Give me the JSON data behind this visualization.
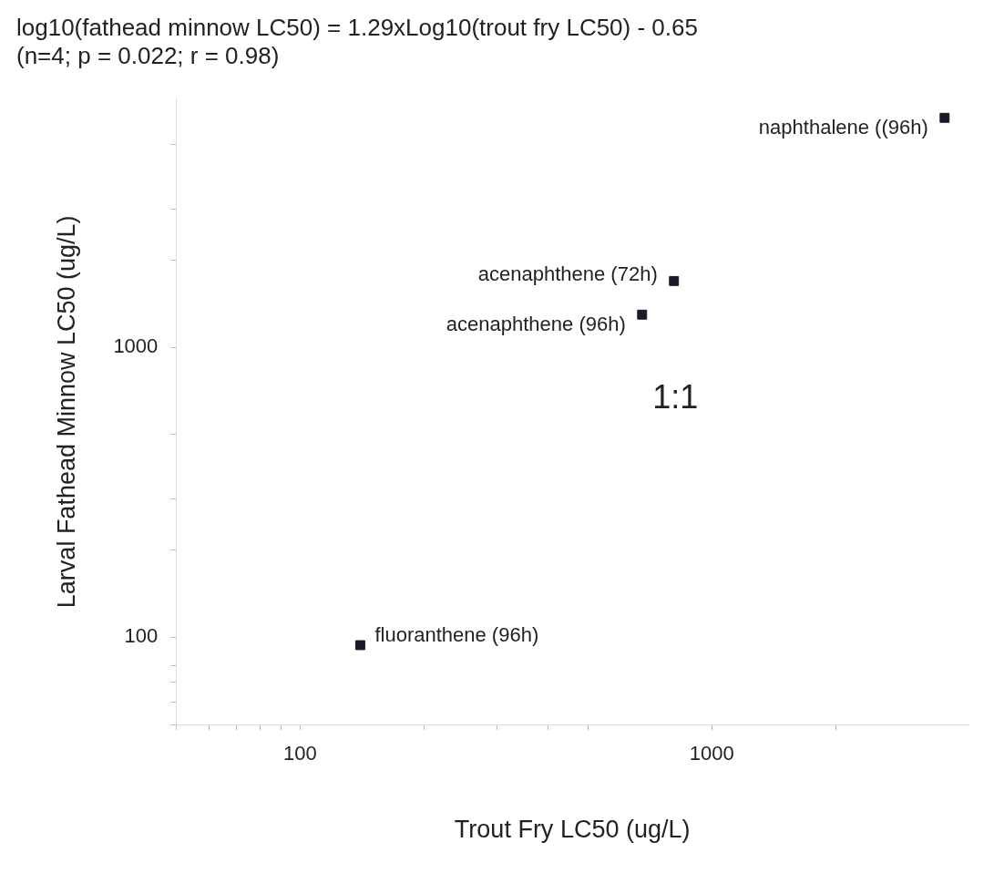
{
  "chart_data": {
    "type": "scatter",
    "title": "log10(fathead minnow LC50) = 1.29xLog10(trout fry LC50) - 0.65",
    "subtitle": "(n=4; p = 0.022; r = 0.98)",
    "xlabel": "Trout Fry LC50 (ug/L)",
    "ylabel": "Larval Fathead Minnow LC50 (ug/L)",
    "log": "xy",
    "grid": false,
    "legend": false,
    "marker": "square",
    "series": [
      {
        "name": "naphthalene ((96h)",
        "color": "#1a1a2a",
        "x": [
          3675
        ],
        "values": [
          6190
        ]
      },
      {
        "name": "acenaphthene (72h)",
        "color": "#1a1a2a",
        "x": [
          809
        ],
        "values": [
          1694
        ]
      },
      {
        "name": "acenaphthene (96h)",
        "color": "#1a1a2a",
        "x": [
          677
        ],
        "values": [
          1297
        ]
      },
      {
        "name": "fluoranthene (96h)",
        "color": "#1a1a2a",
        "x": [
          140
        ],
        "values": [
          94
        ]
      }
    ],
    "xlim": [
      50,
      4200
    ],
    "ylim": [
      50,
      7200
    ],
    "xticks": [
      {
        "value": 50,
        "label": null
      },
      {
        "value": 60,
        "label": null
      },
      {
        "value": 70,
        "label": null
      },
      {
        "value": 80,
        "label": null
      },
      {
        "value": 90,
        "label": null
      },
      100,
      {
        "value": 200,
        "label": null
      },
      {
        "value": 300,
        "label": null
      },
      {
        "value": 400,
        "label": null
      },
      {
        "value": 500,
        "label": null
      },
      1000,
      {
        "value": 2000,
        "label": null
      }
    ],
    "yticks": [
      {
        "value": 50,
        "label": null
      },
      {
        "value": 60,
        "label": null
      },
      {
        "value": 70,
        "label": null
      },
      {
        "value": 80,
        "label": null
      },
      100,
      {
        "value": 200,
        "label": null
      },
      {
        "value": 300,
        "label": null
      },
      {
        "value": 500,
        "label": null
      },
      1000,
      {
        "value": 2000,
        "label": null
      },
      {
        "value": 3000,
        "label": null
      },
      {
        "value": 5000,
        "label": null
      }
    ],
    "annotations": [
      "1:1"
    ]
  }
}
